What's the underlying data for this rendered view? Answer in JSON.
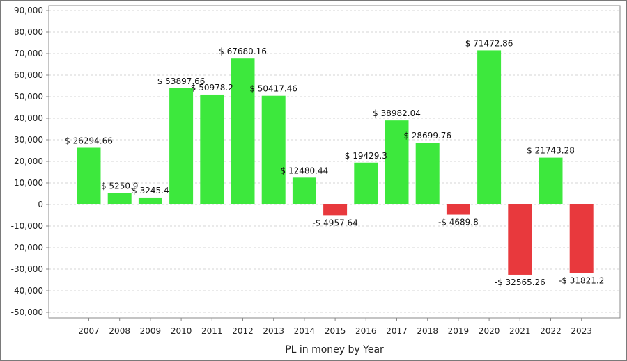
{
  "chart_data": {
    "type": "bar",
    "categories": [
      "2007",
      "2008",
      "2009",
      "2010",
      "2011",
      "2012",
      "2013",
      "2014",
      "2015",
      "2016",
      "2017",
      "2018",
      "2019",
      "2020",
      "2021",
      "2022",
      "2023"
    ],
    "values": [
      26294.66,
      5250.9,
      3245.4,
      53897.66,
      50978.2,
      67680.16,
      50417.46,
      12480.44,
      -4957.64,
      19429.3,
      38982.04,
      28699.76,
      -4689.8,
      71472.86,
      -32565.26,
      21743.28,
      -31821.2
    ],
    "data_labels": [
      "$ 26294.66",
      "$ 5250.9",
      "$ 3245.4",
      "$ 53897.66",
      "$ 50978.2",
      "$ 67680.16",
      "$ 50417.46",
      "$ 12480.44",
      "-$ 4957.64",
      "$ 19429.3",
      "$ 38982.04",
      "$ 28699.76",
      "-$ 4689.8",
      "$ 71472.86",
      "-$ 32565.26",
      "$ 21743.28",
      "-$ 31821.2"
    ],
    "xlabel": "PL in money by Year",
    "ylabel": "",
    "ylim": [
      -50000,
      90000
    ],
    "yticks": [
      90000,
      80000,
      70000,
      60000,
      50000,
      40000,
      30000,
      20000,
      10000,
      0,
      -10000,
      -20000,
      -30000,
      -40000,
      -50000
    ],
    "ytick_labels": [
      "90,000",
      "80,000",
      "70,000",
      "60,000",
      "50,000",
      "40,000",
      "30,000",
      "20,000",
      "10,000",
      "0",
      "-10,000",
      "-20,000",
      "-30,000",
      "-40,000",
      "-50,000"
    ],
    "grid": true,
    "colors": {
      "positive": "#3de83d",
      "negative": "#e8393d",
      "grid": "#d6d6d6",
      "axis": "#888888"
    }
  }
}
